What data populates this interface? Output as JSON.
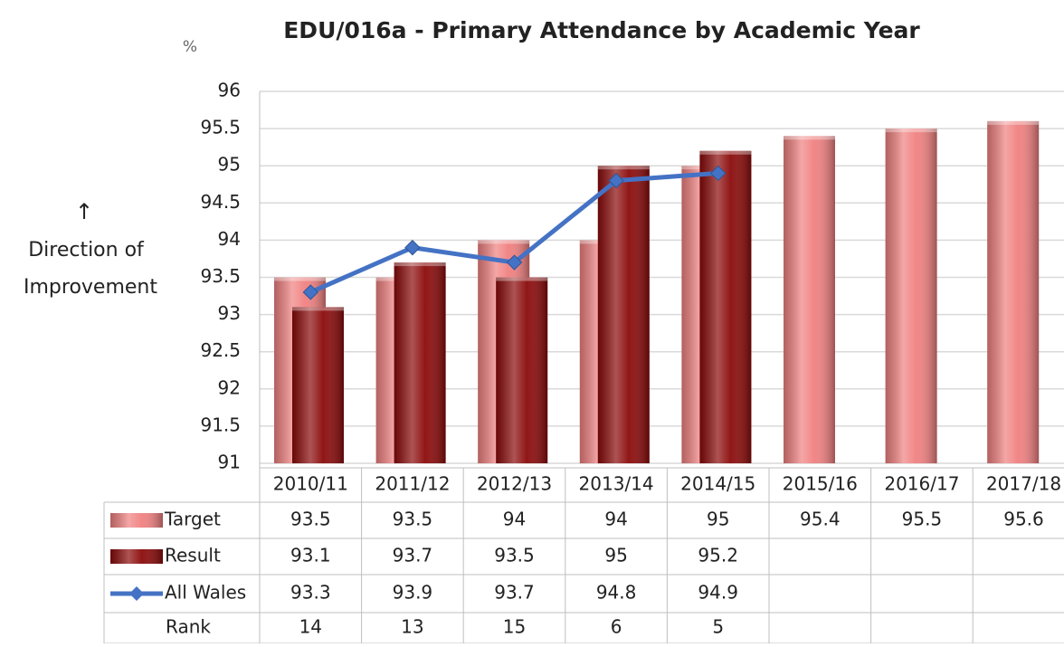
{
  "chart_data": {
    "type": "bar",
    "title": "EDU/016a - Primary Attendance by Academic Year",
    "ylabel": "%",
    "annotation": {
      "arrow": "↑",
      "lines": [
        "Direction of",
        "Improvement"
      ]
    },
    "categories": [
      "2010/11",
      "2011/12",
      "2012/13",
      "2013/14",
      "2014/15",
      "2015/16",
      "2016/17",
      "2017/18"
    ],
    "series": [
      {
        "name": "Target",
        "type": "bar",
        "color": "#f08080",
        "values": [
          93.5,
          93.5,
          94,
          94,
          95,
          95.4,
          95.5,
          95.6
        ]
      },
      {
        "name": "Result",
        "type": "bar",
        "color": "#8b0a0a",
        "values": [
          93.1,
          93.7,
          93.5,
          95,
          95.2,
          null,
          null,
          null
        ]
      },
      {
        "name": "All Wales",
        "type": "line",
        "color": "#4472c4",
        "values": [
          93.3,
          93.9,
          93.7,
          94.8,
          94.9,
          null,
          null,
          null
        ]
      }
    ],
    "rank": {
      "name": "Rank",
      "values": [
        14,
        13,
        15,
        6,
        5,
        null,
        null,
        null
      ]
    },
    "ylim": [
      91,
      96
    ],
    "yticks": [
      91,
      91.5,
      92,
      92.5,
      93,
      93.5,
      94,
      94.5,
      95,
      95.5,
      96
    ],
    "grid": true,
    "data_table": true
  }
}
